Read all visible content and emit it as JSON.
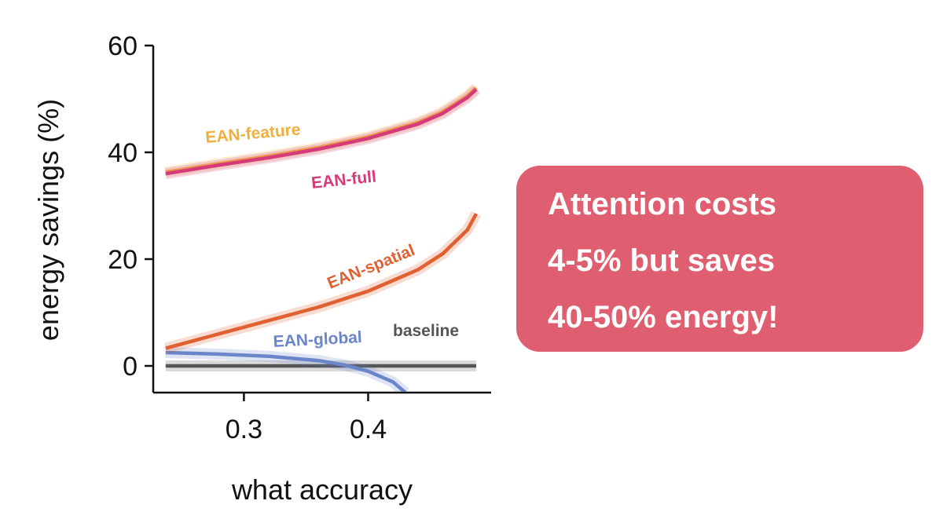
{
  "chart_data": {
    "type": "line",
    "xlabel": "what accuracy",
    "ylabel": "energy savings (%)",
    "xlim": [
      0.227,
      0.499
    ],
    "ylim": [
      -5,
      60
    ],
    "xticks": [
      0.3,
      0.4
    ],
    "yticks": [
      0,
      20,
      40,
      60
    ],
    "series": [
      {
        "name": "baseline",
        "color": "#555555",
        "x": [
          0.237,
          0.487
        ],
        "values": [
          0,
          0
        ]
      },
      {
        "name": "EAN-global",
        "color": "#6a85c8",
        "x": [
          0.237,
          0.28,
          0.32,
          0.36,
          0.38,
          0.4,
          0.42,
          0.43
        ],
        "values": [
          2.5,
          2.2,
          1.8,
          1,
          0.2,
          -1,
          -3,
          -5
        ]
      },
      {
        "name": "EAN-spatial",
        "color": "#e06030",
        "x": [
          0.237,
          0.28,
          0.32,
          0.36,
          0.4,
          0.44,
          0.46,
          0.48,
          0.487
        ],
        "values": [
          3.3,
          6,
          8.5,
          11,
          14,
          18,
          21,
          25.5,
          28.5
        ]
      },
      {
        "name": "EAN-feature",
        "color": "#f0b040",
        "x": [
          0.237,
          0.28,
          0.32,
          0.36,
          0.4,
          0.44,
          0.46,
          0.48,
          0.487
        ],
        "values": [
          36.3,
          37.9,
          39.3,
          40.9,
          42.9,
          45.6,
          47.6,
          50.6,
          52.1
        ]
      },
      {
        "name": "EAN-full",
        "color": "#d63a7a",
        "x": [
          0.237,
          0.28,
          0.32,
          0.36,
          0.4,
          0.44,
          0.46,
          0.48,
          0.487
        ],
        "values": [
          36,
          37.6,
          39,
          40.6,
          42.6,
          45.3,
          47.3,
          50.3,
          51.8
        ]
      }
    ]
  },
  "callout": {
    "lines": [
      "Attention costs",
      "4-5% but saves",
      "40-50% energy!"
    ]
  }
}
